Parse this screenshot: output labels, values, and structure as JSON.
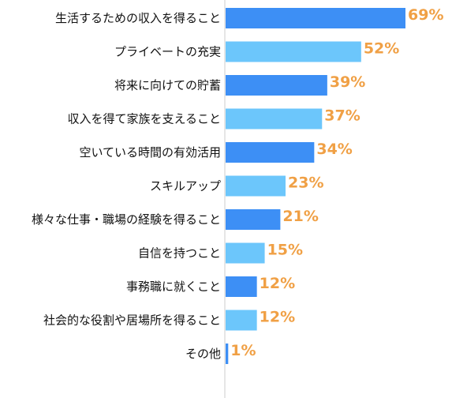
{
  "chart_data": {
    "type": "bar",
    "orientation": "horizontal",
    "categories": [
      "生活するための収入を得ること",
      "プライベートの充実",
      "将来に向けての貯蓄",
      "収入を得て家族を支えること",
      "空いている時間の有効活用",
      "スキルアップ",
      "様々な仕事・職場の経験を得ること",
      "自信を持つこと",
      "事務職に就くこと",
      "社会的な役割や居場所を得ること",
      "その他"
    ],
    "values": [
      69,
      52,
      39,
      37,
      34,
      23,
      21,
      15,
      12,
      12,
      1
    ],
    "value_labels": [
      "69%",
      "52%",
      "39%",
      "37%",
      "34%",
      "23%",
      "21%",
      "15%",
      "12%",
      "12%",
      "1%"
    ],
    "xlim": [
      0,
      69
    ],
    "grid": false,
    "legend": "none",
    "colors": {
      "bar_dark": "#3d8ff5",
      "bar_light": "#6cc6fb",
      "value_label": "#f0a045",
      "axis": "#cccccc"
    }
  }
}
